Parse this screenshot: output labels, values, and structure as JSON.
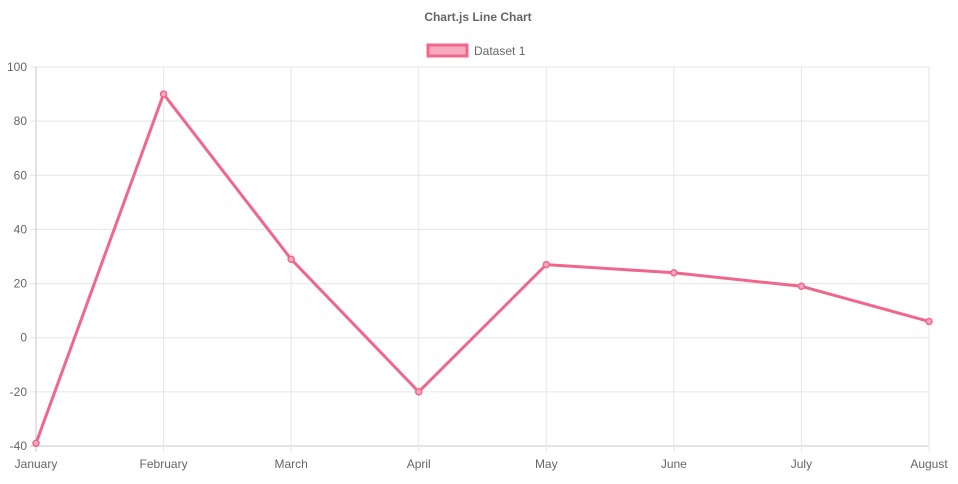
{
  "chart_data": {
    "type": "line",
    "title": "Chart.js Line Chart",
    "categories": [
      "January",
      "February",
      "March",
      "April",
      "May",
      "June",
      "July",
      "August"
    ],
    "series": [
      {
        "name": "Dataset 1",
        "values": [
          -39,
          90,
          29,
          -20,
          27,
          24,
          19,
          6
        ],
        "color": "#f0678c",
        "fill_color": "#f8a9bb"
      }
    ],
    "yticks": [
      -40,
      -20,
      0,
      20,
      40,
      60,
      80,
      100
    ],
    "ylim": [
      -40,
      100
    ],
    "grid": true,
    "legend_position": "top"
  }
}
